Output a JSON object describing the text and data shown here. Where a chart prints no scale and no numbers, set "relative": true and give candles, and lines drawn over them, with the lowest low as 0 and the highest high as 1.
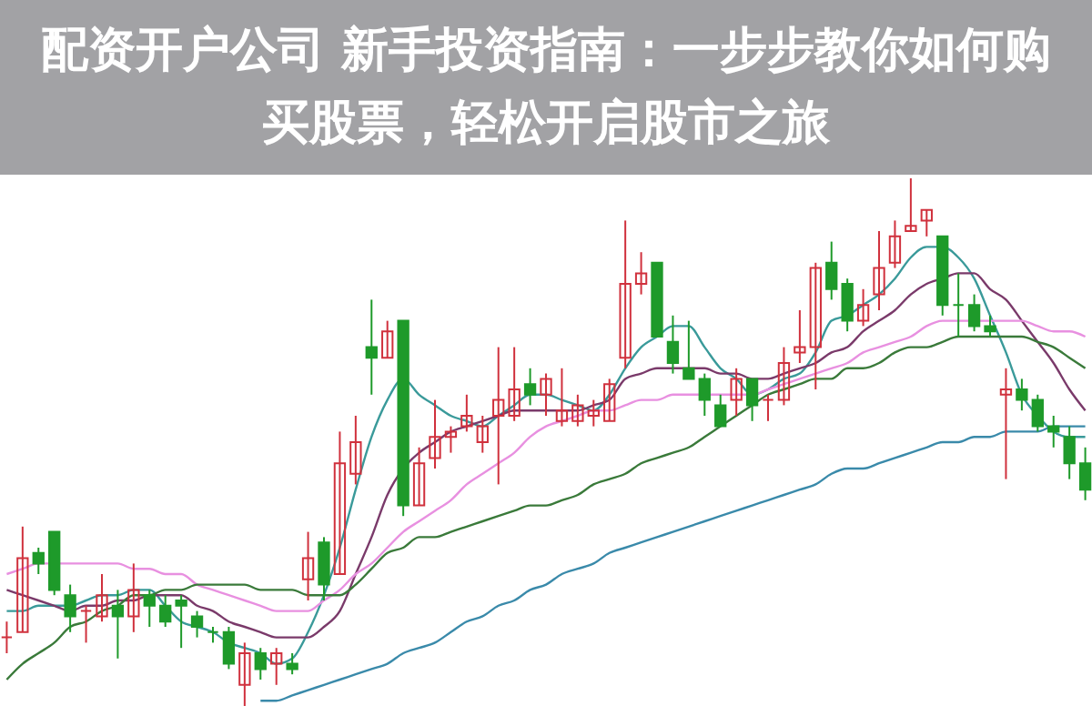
{
  "chart_data": {
    "type": "candlestick",
    "title": "配资开户公司 新手投资指南：一步步教你如何购买股票，轻松开启股市之旅",
    "relative": true,
    "tick_labels": false,
    "categories": [
      null,
      null,
      null,
      null,
      null,
      null,
      null,
      null,
      null,
      null,
      null,
      null,
      null,
      null,
      null,
      null,
      null,
      null,
      null,
      null,
      null,
      null,
      null,
      null,
      null,
      null,
      null,
      null,
      null,
      null,
      null,
      null,
      null,
      null,
      null,
      null,
      null,
      null,
      null,
      null,
      null,
      null,
      null,
      null,
      null,
      null,
      null,
      null,
      null,
      null,
      null,
      null,
      null,
      null,
      null,
      null,
      null,
      null,
      null,
      null,
      null,
      null,
      null,
      null,
      null,
      null,
      null,
      null,
      null
    ],
    "ohlc": [
      [
        0.13,
        0.16,
        0.1,
        0.13
      ],
      [
        0.14,
        0.34,
        0.14,
        0.28
      ],
      [
        0.29,
        0.3,
        0.25,
        0.27
      ],
      [
        0.33,
        0.33,
        0.21,
        0.22
      ],
      [
        0.21,
        0.23,
        0.14,
        0.17
      ],
      [
        0.18,
        0.19,
        0.12,
        0.18
      ],
      [
        0.17,
        0.25,
        0.16,
        0.21
      ],
      [
        0.19,
        0.22,
        0.09,
        0.17
      ],
      [
        0.17,
        0.27,
        0.14,
        0.22
      ],
      [
        0.21,
        0.22,
        0.15,
        0.19
      ],
      [
        0.19,
        0.21,
        0.15,
        0.16
      ],
      [
        0.2,
        0.21,
        0.11,
        0.19
      ],
      [
        0.17,
        0.18,
        0.13,
        0.15
      ],
      [
        0.14,
        0.15,
        0.12,
        0.14
      ],
      [
        0.14,
        0.15,
        0.07,
        0.08
      ],
      [
        0.04,
        0.12,
        0,
        0.1
      ],
      [
        0.1,
        0.11,
        0.05,
        0.07
      ],
      [
        0.08,
        0.11,
        0.04,
        0.1
      ],
      [
        0.08,
        0.1,
        0.06,
        0.07
      ],
      [
        0.24,
        0.33,
        0.2,
        0.28
      ],
      [
        0.31,
        0.32,
        0.2,
        0.23
      ],
      [
        0.25,
        0.52,
        0.25,
        0.46
      ],
      [
        0.44,
        0.55,
        0.42,
        0.5
      ],
      [
        0.68,
        0.77,
        0.59,
        0.66
      ],
      [
        0.66,
        0.73,
        0.66,
        0.71
      ],
      [
        0.73,
        0.73,
        0.36,
        0.38
      ],
      [
        0.38,
        0.49,
        0.38,
        0.46
      ],
      [
        0.47,
        0.58,
        0.45,
        0.51
      ],
      [
        0.51,
        0.53,
        0.48,
        0.52
      ],
      [
        0.53,
        0.59,
        0.52,
        0.55
      ],
      [
        0.5,
        0.55,
        0.48,
        0.53
      ],
      [
        0.55,
        0.68,
        0.42,
        0.58
      ],
      [
        0.55,
        0.68,
        0.54,
        0.6
      ],
      [
        0.61,
        0.64,
        0.57,
        0.59
      ],
      [
        0.59,
        0.63,
        0.55,
        0.62
      ],
      [
        0.54,
        0.64,
        0.53,
        0.56
      ],
      [
        0.54,
        0.59,
        0.53,
        0.57
      ],
      [
        0.55,
        0.58,
        0.53,
        0.56
      ],
      [
        0.54,
        0.62,
        0.54,
        0.61
      ],
      [
        0.66,
        0.92,
        0.64,
        0.8
      ],
      [
        0.8,
        0.86,
        0.78,
        0.82
      ],
      [
        0.84,
        0.84,
        0.7,
        0.7
      ],
      [
        0.69,
        0.74,
        0.63,
        0.65
      ],
      [
        0.64,
        0.73,
        0.62,
        0.62
      ],
      [
        0.62,
        0.63,
        0.55,
        0.58
      ],
      [
        0.57,
        0.59,
        0.53,
        0.53
      ],
      [
        0.58,
        0.64,
        0.55,
        0.62
      ],
      [
        0.62,
        0.62,
        0.54,
        0.57
      ],
      [
        0.58,
        0.59,
        0.54,
        0.58
      ],
      [
        0.58,
        0.68,
        0.57,
        0.65
      ],
      [
        0.67,
        0.75,
        0.65,
        0.68
      ],
      [
        0.68,
        0.84,
        0.6,
        0.83
      ],
      [
        0.84,
        0.88,
        0.77,
        0.79
      ],
      [
        0.8,
        0.81,
        0.71,
        0.73
      ],
      [
        0.73,
        0.79,
        0.72,
        0.76
      ],
      [
        0.78,
        0.9,
        0.75,
        0.83
      ],
      [
        0.84,
        0.92,
        0.83,
        0.89
      ],
      [
        0.9,
        1,
        0.9,
        0.91
      ],
      [
        0.92,
        0.94,
        0.89,
        0.94
      ],
      [
        0.89,
        0.89,
        0.74,
        0.76
      ],
      [
        0.76,
        0.82,
        0.7,
        0.76
      ],
      [
        0.76,
        0.78,
        0.71,
        0.72
      ],
      [
        0.72,
        0.74,
        0.7,
        0.71
      ],
      [
        0.59,
        0.64,
        0.43,
        0.6
      ],
      [
        0.6,
        0.62,
        0.56,
        0.58
      ],
      [
        0.58,
        0.59,
        0.52,
        0.53
      ],
      [
        0.53,
        0.55,
        0.49,
        0.52
      ],
      [
        0.51,
        0.53,
        0.43,
        0.46
      ],
      [
        0.46,
        0.49,
        0.39,
        0.41
      ]
    ],
    "colors": [
      "#d0313d",
      "#d0313d",
      "#1e9a2a",
      "#1e9a2a",
      "#1e9a2a",
      "#d0313d",
      "#d0313d",
      "#1e9a2a",
      "#d0313d",
      "#1e9a2a",
      "#1e9a2a",
      "#1e9a2a",
      "#1e9a2a",
      "#1e9a2a",
      "#1e9a2a",
      "#d0313d",
      "#1e9a2a",
      "#d0313d",
      "#1e9a2a",
      "#d0313d",
      "#1e9a2a",
      "#d0313d",
      "#d0313d",
      "#1e9a2a",
      "#d0313d",
      "#1e9a2a",
      "#d0313d",
      "#d0313d",
      "#d0313d",
      "#d0313d",
      "#d0313d",
      "#d0313d",
      "#d0313d",
      "#1e9a2a",
      "#d0313d",
      "#d0313d",
      "#d0313d",
      "#d0313d",
      "#d0313d",
      "#d0313d",
      "#d0313d",
      "#1e9a2a",
      "#1e9a2a",
      "#1e9a2a",
      "#1e9a2a",
      "#1e9a2a",
      "#d0313d",
      "#1e9a2a",
      "#d0313d",
      "#d0313d",
      "#d0313d",
      "#d0313d",
      "#1e9a2a",
      "#1e9a2a",
      "#d0313d",
      "#d0313d",
      "#d0313d",
      "#d0313d",
      "#d0313d",
      "#1e9a2a",
      "#1e9a2a",
      "#1e9a2a",
      "#1e9a2a",
      "#d0313d",
      "#1e9a2a",
      "#1e9a2a",
      "#1e9a2a",
      "#1e9a2a",
      "#1e9a2a"
    ],
    "series": [
      {
        "type": "line",
        "color": "#3a9a9a",
        "values": [
          0.18,
          0.18,
          0.19,
          0.19,
          0.19,
          0.2,
          0.21,
          0.21,
          0.22,
          0.22,
          0.19,
          0.16,
          0.15,
          0.14,
          0.12,
          0.11,
          0.1,
          0.08,
          0.09,
          0.14,
          0.21,
          0.3,
          0.41,
          0.51,
          0.58,
          0.62,
          0.59,
          0.57,
          0.55,
          0.54,
          0.53,
          0.55,
          0.57,
          0.59,
          0.59,
          0.58,
          0.57,
          0.56,
          0.59,
          0.64,
          0.68,
          0.7,
          0.72,
          0.72,
          0.68,
          0.64,
          0.62,
          0.59,
          0.6,
          0.62,
          0.63,
          0.67,
          0.73,
          0.74,
          0.76,
          0.78,
          0.81,
          0.85,
          0.87,
          0.87,
          0.85,
          0.81,
          0.74,
          0.67,
          0.59,
          0.55,
          0.52,
          0.51,
          0.51
        ]
      },
      {
        "type": "line",
        "color": "#7a3a6a",
        "values": [
          0.22,
          0.21,
          0.2,
          0.19,
          0.18,
          0.19,
          0.19,
          0.2,
          0.2,
          0.21,
          0.21,
          0.21,
          0.19,
          0.18,
          0.16,
          0.15,
          0.14,
          0.13,
          0.13,
          0.13,
          0.15,
          0.18,
          0.25,
          0.32,
          0.4,
          0.45,
          0.48,
          0.5,
          0.52,
          0.53,
          0.54,
          0.55,
          0.56,
          0.56,
          0.56,
          0.56,
          0.56,
          0.57,
          0.58,
          0.62,
          0.63,
          0.64,
          0.64,
          0.64,
          0.64,
          0.63,
          0.63,
          0.62,
          0.62,
          0.63,
          0.64,
          0.65,
          0.67,
          0.68,
          0.71,
          0.73,
          0.75,
          0.78,
          0.8,
          0.81,
          0.82,
          0.82,
          0.79,
          0.77,
          0.73,
          0.69,
          0.65,
          0.6,
          0.56
        ]
      },
      {
        "type": "line",
        "color": "#e890e0",
        "values": [
          0.25,
          0.26,
          0.27,
          0.27,
          0.27,
          0.27,
          0.27,
          0.27,
          0.26,
          0.26,
          0.25,
          0.25,
          0.23,
          0.22,
          0.21,
          0.2,
          0.19,
          0.18,
          0.18,
          0.18,
          0.2,
          0.22,
          0.25,
          0.27,
          0.3,
          0.33,
          0.35,
          0.37,
          0.39,
          0.42,
          0.44,
          0.46,
          0.48,
          0.51,
          0.53,
          0.54,
          0.55,
          0.56,
          0.56,
          0.57,
          0.58,
          0.58,
          0.59,
          0.59,
          0.59,
          0.59,
          0.59,
          0.59,
          0.6,
          0.61,
          0.62,
          0.63,
          0.64,
          0.65,
          0.67,
          0.68,
          0.69,
          0.7,
          0.72,
          0.73,
          0.73,
          0.73,
          0.73,
          0.73,
          0.73,
          0.72,
          0.71,
          0.71,
          0.7
        ]
      },
      {
        "type": "line",
        "color": "#3a7a3a",
        "values": [
          0.05,
          0.08,
          0.1,
          0.12,
          0.15,
          0.16,
          0.18,
          0.19,
          0.21,
          0.21,
          0.22,
          0.22,
          0.23,
          0.23,
          0.23,
          0.23,
          0.22,
          0.22,
          0.22,
          0.21,
          0.21,
          0.21,
          0.23,
          0.26,
          0.29,
          0.3,
          0.32,
          0.32,
          0.33,
          0.34,
          0.35,
          0.36,
          0.37,
          0.38,
          0.38,
          0.39,
          0.4,
          0.42,
          0.43,
          0.44,
          0.46,
          0.47,
          0.48,
          0.49,
          0.51,
          0.53,
          0.55,
          0.57,
          0.59,
          0.6,
          0.61,
          0.62,
          0.62,
          0.64,
          0.64,
          0.65,
          0.67,
          0.68,
          0.68,
          0.69,
          0.7,
          0.7,
          0.7,
          0.7,
          0.7,
          0.69,
          0.68,
          0.66,
          0.64
        ]
      },
      {
        "type": "line",
        "color": "#3a8aaa",
        "values": [
          null,
          null,
          null,
          null,
          null,
          null,
          null,
          null,
          null,
          null,
          null,
          null,
          null,
          null,
          null,
          null,
          0.01,
          0.01,
          0.02,
          0.03,
          0.04,
          0.05,
          0.06,
          0.07,
          0.08,
          0.1,
          0.11,
          0.12,
          0.14,
          0.16,
          0.17,
          0.19,
          0.2,
          0.22,
          0.23,
          0.25,
          0.26,
          0.27,
          0.29,
          0.3,
          0.31,
          0.32,
          0.33,
          0.34,
          0.35,
          0.36,
          0.37,
          0.38,
          0.39,
          0.4,
          0.41,
          0.42,
          0.44,
          0.45,
          0.45,
          0.46,
          0.47,
          0.48,
          0.49,
          0.5,
          0.5,
          0.51,
          0.51,
          0.52,
          0.52,
          0.52,
          0.53,
          0.53,
          0.53
        ]
      }
    ]
  }
}
